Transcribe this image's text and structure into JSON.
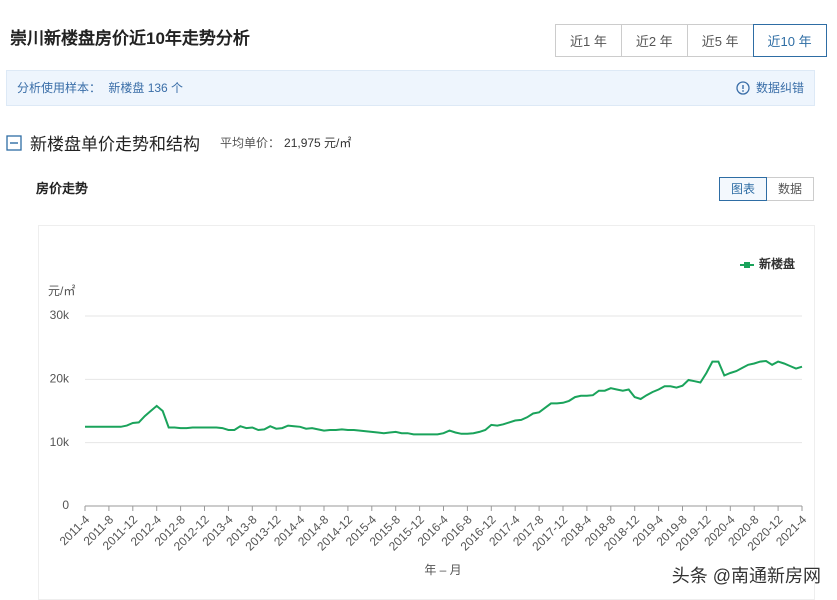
{
  "header": {
    "title": "崇川新楼盘房价近10年走势分析",
    "tabs": [
      "近1 年",
      "近2 年",
      "近5 年",
      "近10 年"
    ],
    "active_tab": 3
  },
  "sample": {
    "label": "分析使用样本：",
    "value": "新楼盘 136 个",
    "correction": "数据纠错"
  },
  "section": {
    "title": "新楼盘单价走势和结构",
    "avg_label": "平均单价：",
    "avg_value": "21,975 元/㎡"
  },
  "panel": {
    "title": "房价走势",
    "views": [
      "图表",
      "数据"
    ],
    "active_view": 0
  },
  "watermark": "头条 @南通新房网",
  "chart_data": {
    "type": "line",
    "y_unit": "元/㎡",
    "x_label": "年 – 月",
    "legend": "top-right",
    "grid": true,
    "ylim": [
      0,
      30000
    ],
    "yticks": [
      0,
      {
        "value": 10000,
        "label": "10k"
      },
      {
        "value": 20000,
        "label": "20k"
      },
      {
        "value": 30000,
        "label": "30k"
      }
    ],
    "categories": [
      "2011-4",
      null,
      null,
      null,
      "2011-8",
      null,
      null,
      null,
      "2011-12",
      null,
      null,
      null,
      "2012-4",
      null,
      null,
      null,
      "2012-8",
      null,
      null,
      null,
      "2012-12",
      null,
      null,
      null,
      "2013-4",
      null,
      null,
      null,
      "2013-8",
      null,
      null,
      null,
      "2013-12",
      null,
      null,
      null,
      "2014-4",
      null,
      null,
      null,
      "2014-8",
      null,
      null,
      null,
      "2014-12",
      null,
      null,
      null,
      "2015-4",
      null,
      null,
      null,
      "2015-8",
      null,
      null,
      null,
      "2015-12",
      null,
      null,
      null,
      "2016-4",
      null,
      null,
      null,
      "2016-8",
      null,
      null,
      null,
      "2016-12",
      null,
      null,
      null,
      "2017-4",
      null,
      null,
      null,
      "2017-8",
      null,
      null,
      null,
      "2017-12",
      null,
      null,
      null,
      "2018-4",
      null,
      null,
      null,
      "2018-8",
      null,
      null,
      null,
      "2018-12",
      null,
      null,
      null,
      "2019-4",
      null,
      null,
      null,
      "2019-8",
      null,
      null,
      null,
      "2019-12",
      null,
      null,
      null,
      "2020-4",
      null,
      null,
      null,
      "2020-8",
      null,
      null,
      null,
      "2020-12",
      null,
      null,
      null,
      "2021-4"
    ],
    "series": [
      {
        "name": "新楼盘",
        "color": "#1aa35b",
        "values": [
          12500,
          12500,
          12500,
          12500,
          12500,
          12500,
          12500,
          12700,
          13100,
          13200,
          14200,
          15000,
          15800,
          15000,
          12400,
          12400,
          12300,
          12300,
          12400,
          12400,
          12400,
          12400,
          12400,
          12300,
          12000,
          12000,
          12600,
          12300,
          12400,
          12000,
          12100,
          12600,
          12200,
          12300,
          12700,
          12600,
          12500,
          12200,
          12300,
          12100,
          11900,
          12000,
          12000,
          12100,
          12000,
          12000,
          11900,
          11800,
          11700,
          11600,
          11500,
          11600,
          11700,
          11500,
          11500,
          11300,
          11300,
          11300,
          11300,
          11300,
          11500,
          11900,
          11600,
          11400,
          11400,
          11500,
          11700,
          12000,
          12800,
          12700,
          12900,
          13200,
          13500,
          13600,
          14000,
          14600,
          14800,
          15500,
          16200,
          16200,
          16300,
          16600,
          17200,
          17400,
          17400,
          17500,
          18200,
          18200,
          18600,
          18400,
          18200,
          18400,
          17200,
          16900,
          17500,
          18000,
          18400,
          18900,
          18900,
          18700,
          19000,
          19900,
          19700,
          19500,
          21000,
          22800,
          22800,
          20600,
          21000,
          21300,
          21800,
          22300,
          22500,
          22800,
          22900,
          22300,
          22800,
          22500,
          22100,
          21700,
          22000
        ]
      }
    ]
  }
}
